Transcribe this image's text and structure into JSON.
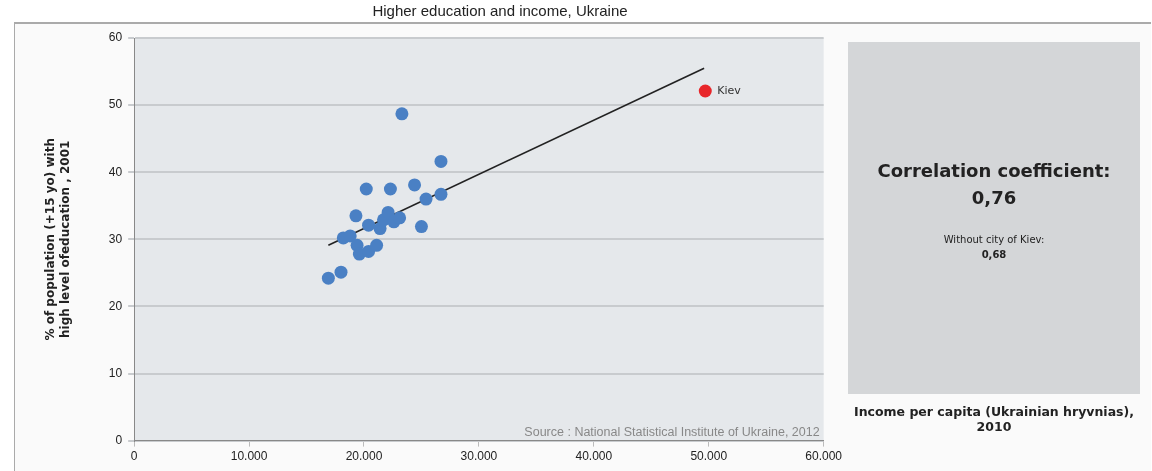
{
  "chart_data": {
    "type": "scatter",
    "title": "Higher education and income, Ukraine",
    "xlabel": "Income per capita (Ukrainian hryvnias), 2010",
    "ylabel": "% of population (+15 yo) with high level ofeducation , 2001",
    "series": [
      {
        "color": "#4a80c4",
        "x": [
          16900,
          18000,
          18200,
          18800,
          19300,
          19400,
          19600,
          20200,
          20400,
          20400,
          21100,
          21400,
          21700,
          22100,
          22300,
          22600,
          23100,
          23300,
          24400,
          25000,
          25400,
          26700,
          26700
        ],
        "values": [
          24.2,
          25.1,
          30.2,
          30.5,
          33.5,
          29.1,
          27.8,
          37.5,
          32.1,
          28.2,
          29.1,
          31.6,
          32.9,
          34.0,
          37.5,
          32.6,
          33.2,
          48.7,
          38.1,
          31.9,
          36.0,
          41.6,
          36.7
        ]
      },
      {
        "name": "Kiev",
        "color": "#e8262a",
        "x": [
          49700
        ],
        "values": [
          52.1
        ]
      },
      {
        "type": "line",
        "color": "#222222",
        "marker": "none",
        "x": [
          16900,
          49600
        ],
        "values": [
          29.1,
          55.5
        ]
      }
    ],
    "xlim": [
      0,
      60000
    ],
    "xticks": [
      0,
      {
        "value": 10000,
        "label": "10.000"
      },
      {
        "value": 20000,
        "label": "20.000"
      },
      {
        "value": 30000,
        "label": "30.000"
      },
      {
        "value": 40000,
        "label": "40.000"
      },
      {
        "value": 50000,
        "label": "50.000"
      },
      {
        "value": 60000,
        "label": "60.000"
      }
    ],
    "ylim": [
      0,
      60
    ],
    "yticks": [
      0,
      10,
      20,
      30,
      40,
      50,
      60
    ],
    "grid": "y",
    "legend": false,
    "marker": "circle",
    "annotations": [
      "Source : National Statistical Institute of Ukraine, 2012",
      "Correlation coefficient:",
      "0,76",
      "Without city of Kiev:",
      "0,68"
    ]
  }
}
